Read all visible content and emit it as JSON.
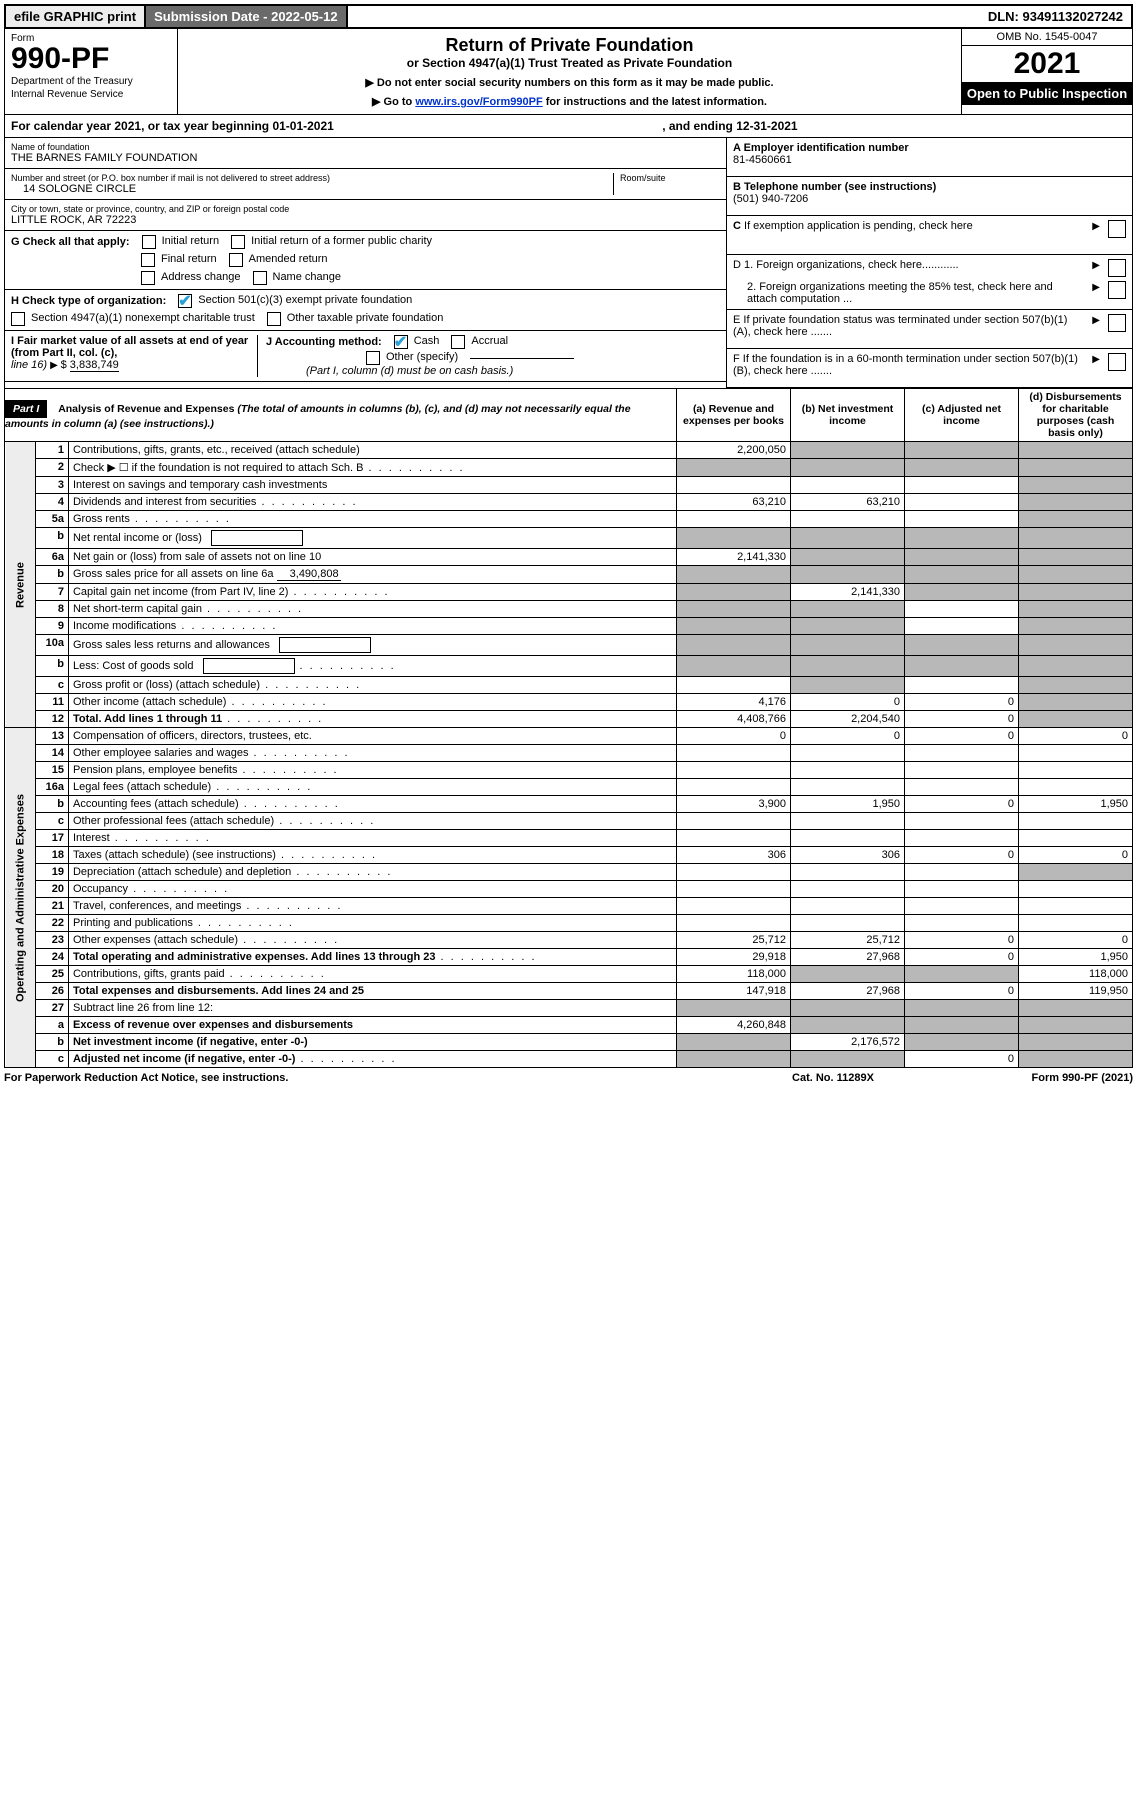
{
  "topbar": {
    "efile": "efile GRAPHIC print",
    "submission": "Submission Date - 2022-05-12",
    "dln": "DLN: 93491132027242"
  },
  "header": {
    "form_word": "Form",
    "form_number": "990-PF",
    "dept1": "Department of the Treasury",
    "dept2": "Internal Revenue Service",
    "title": "Return of Private Foundation",
    "subtitle": "or Section 4947(a)(1) Trust Treated as Private Foundation",
    "note1": "▶ Do not enter social security numbers on this form as it may be made public.",
    "note2_pre": "▶ Go to ",
    "note2_link": "www.irs.gov/Form990PF",
    "note2_post": " for instructions and the latest information.",
    "omb": "OMB No. 1545-0047",
    "year": "2021",
    "open_pub": "Open to Public Inspection"
  },
  "calendar": {
    "label": "For calendar year 2021, or tax year beginning 01-01-2021",
    "ending": ", and ending 12-31-2021"
  },
  "info": {
    "name_label": "Name of foundation",
    "name": "THE BARNES FAMILY FOUNDATION",
    "addr_label": "Number and street (or P.O. box number if mail is not delivered to street address)",
    "addr": "14 SOLOGNE CIRCLE",
    "room_label": "Room/suite",
    "city_label": "City or town, state or province, country, and ZIP or foreign postal code",
    "city": "LITTLE ROCK, AR  72223",
    "a_label": "A Employer identification number",
    "a_val": "81-4560661",
    "b_label": "B Telephone number (see instructions)",
    "b_val": "(501) 940-7206",
    "c_label": "C If exemption application is pending, check here",
    "d1_label": "D 1. Foreign organizations, check here............",
    "d2_label": "2. Foreign organizations meeting the 85% test, check here and attach computation ...",
    "e_label": "E  If private foundation status was terminated under section 507(b)(1)(A), check here .......",
    "f_label": "F  If the foundation is in a 60-month termination under section 507(b)(1)(B), check here .......",
    "g_label": "G Check all that apply:",
    "g_opts": [
      "Initial return",
      "Initial return of a former public charity",
      "Final return",
      "Amended return",
      "Address change",
      "Name change"
    ],
    "h_label": "H Check type of organization:",
    "h_opt1": "Section 501(c)(3) exempt private foundation",
    "h_opt2": "Section 4947(a)(1) nonexempt charitable trust",
    "h_opt3": "Other taxable private foundation",
    "i_label": "I Fair market value of all assets at end of year (from Part II, col. (c),",
    "i_line": "line 16)",
    "i_val": "3,838,749",
    "j_label": "J Accounting method:",
    "j_cash": "Cash",
    "j_accrual": "Accrual",
    "j_other": "Other (specify)",
    "j_note": "(Part I, column (d) must be on cash basis.)"
  },
  "part1": {
    "label": "Part I",
    "title": "Analysis of Revenue and Expenses",
    "title_note": " (The total of amounts in columns (b), (c), and (d) may not necessarily equal the amounts in column (a) (see instructions).)",
    "col_a": "(a)   Revenue and expenses per books",
    "col_b": "(b)   Net investment income",
    "col_c": "(c)   Adjusted net income",
    "col_d": "(d)  Disbursements for charitable purposes (cash basis only)"
  },
  "side_labels": {
    "revenue": "Revenue",
    "expenses": "Operating and Administrative Expenses"
  },
  "rows": [
    {
      "n": "1",
      "desc": "Contributions, gifts, grants, etc., received (attach schedule)",
      "a": "2,200,050",
      "b": "",
      "c": "",
      "d": "",
      "shade_b": true,
      "shade_c": true,
      "shade_d": true
    },
    {
      "n": "2",
      "desc": "Check ▶ ☐ if the foundation is not required to attach Sch. B",
      "dots": true,
      "a": "",
      "b": "",
      "c": "",
      "d": "",
      "shade_a": true,
      "shade_b": true,
      "shade_c": true,
      "shade_d": true
    },
    {
      "n": "3",
      "desc": "Interest on savings and temporary cash investments",
      "a": "",
      "b": "",
      "c": "",
      "d": "",
      "shade_d": true
    },
    {
      "n": "4",
      "desc": "Dividends and interest from securities",
      "dots": true,
      "a": "63,210",
      "b": "63,210",
      "c": "",
      "d": "",
      "shade_d": true
    },
    {
      "n": "5a",
      "desc": "Gross rents",
      "dots": true,
      "a": "",
      "b": "",
      "c": "",
      "d": "",
      "shade_d": true
    },
    {
      "n": "b",
      "desc": "Net rental income or (loss)",
      "box": true,
      "a": "",
      "b": "",
      "c": "",
      "d": "",
      "shade_a": true,
      "shade_b": true,
      "shade_c": true,
      "shade_d": true
    },
    {
      "n": "6a",
      "desc": "Net gain or (loss) from sale of assets not on line 10",
      "a": "2,141,330",
      "b": "",
      "c": "",
      "d": "",
      "shade_b": true,
      "shade_c": true,
      "shade_d": true
    },
    {
      "n": "b",
      "desc": "Gross sales price for all assets on line 6a",
      "inline": "3,490,808",
      "a": "",
      "b": "",
      "c": "",
      "d": "",
      "shade_a": true,
      "shade_b": true,
      "shade_c": true,
      "shade_d": true
    },
    {
      "n": "7",
      "desc": "Capital gain net income (from Part IV, line 2)",
      "dots": true,
      "a": "",
      "b": "2,141,330",
      "c": "",
      "d": "",
      "shade_a": true,
      "shade_c": true,
      "shade_d": true
    },
    {
      "n": "8",
      "desc": "Net short-term capital gain",
      "dots": true,
      "a": "",
      "b": "",
      "c": "",
      "d": "",
      "shade_a": true,
      "shade_b": true,
      "shade_d": true
    },
    {
      "n": "9",
      "desc": "Income modifications",
      "dots": true,
      "a": "",
      "b": "",
      "c": "",
      "d": "",
      "shade_a": true,
      "shade_b": true,
      "shade_d": true
    },
    {
      "n": "10a",
      "desc": "Gross sales less returns and allowances",
      "box": true,
      "a": "",
      "b": "",
      "c": "",
      "d": "",
      "shade_a": true,
      "shade_b": true,
      "shade_c": true,
      "shade_d": true
    },
    {
      "n": "b",
      "desc": "Less: Cost of goods sold",
      "dots": true,
      "box": true,
      "a": "",
      "b": "",
      "c": "",
      "d": "",
      "shade_a": true,
      "shade_b": true,
      "shade_c": true,
      "shade_d": true
    },
    {
      "n": "c",
      "desc": "Gross profit or (loss) (attach schedule)",
      "dots": true,
      "a": "",
      "b": "",
      "c": "",
      "d": "",
      "shade_b": true,
      "shade_d": true
    },
    {
      "n": "11",
      "desc": "Other income (attach schedule)",
      "dots": true,
      "a": "4,176",
      "b": "0",
      "c": "0",
      "d": "",
      "shade_d": true
    },
    {
      "n": "12",
      "desc": "Total. Add lines 1 through 11",
      "dots": true,
      "bold": true,
      "a": "4,408,766",
      "b": "2,204,540",
      "c": "0",
      "d": "",
      "shade_d": true
    },
    {
      "n": "13",
      "desc": "Compensation of officers, directors, trustees, etc.",
      "a": "0",
      "b": "0",
      "c": "0",
      "d": "0"
    },
    {
      "n": "14",
      "desc": "Other employee salaries and wages",
      "dots": true,
      "a": "",
      "b": "",
      "c": "",
      "d": ""
    },
    {
      "n": "15",
      "desc": "Pension plans, employee benefits",
      "dots": true,
      "a": "",
      "b": "",
      "c": "",
      "d": ""
    },
    {
      "n": "16a",
      "desc": "Legal fees (attach schedule)",
      "dots": true,
      "a": "",
      "b": "",
      "c": "",
      "d": ""
    },
    {
      "n": "b",
      "desc": "Accounting fees (attach schedule)",
      "dots": true,
      "a": "3,900",
      "b": "1,950",
      "c": "0",
      "d": "1,950"
    },
    {
      "n": "c",
      "desc": "Other professional fees (attach schedule)",
      "dots": true,
      "a": "",
      "b": "",
      "c": "",
      "d": ""
    },
    {
      "n": "17",
      "desc": "Interest",
      "dots": true,
      "a": "",
      "b": "",
      "c": "",
      "d": ""
    },
    {
      "n": "18",
      "desc": "Taxes (attach schedule) (see instructions)",
      "dots": true,
      "a": "306",
      "b": "306",
      "c": "0",
      "d": "0"
    },
    {
      "n": "19",
      "desc": "Depreciation (attach schedule) and depletion",
      "dots": true,
      "a": "",
      "b": "",
      "c": "",
      "d": "",
      "shade_d": true
    },
    {
      "n": "20",
      "desc": "Occupancy",
      "dots": true,
      "a": "",
      "b": "",
      "c": "",
      "d": ""
    },
    {
      "n": "21",
      "desc": "Travel, conferences, and meetings",
      "dots": true,
      "a": "",
      "b": "",
      "c": "",
      "d": ""
    },
    {
      "n": "22",
      "desc": "Printing and publications",
      "dots": true,
      "a": "",
      "b": "",
      "c": "",
      "d": ""
    },
    {
      "n": "23",
      "desc": "Other expenses (attach schedule)",
      "dots": true,
      "a": "25,712",
      "b": "25,712",
      "c": "0",
      "d": "0"
    },
    {
      "n": "24",
      "desc": "Total operating and administrative expenses. Add lines 13 through 23",
      "dots": true,
      "bold": true,
      "a": "29,918",
      "b": "27,968",
      "c": "0",
      "d": "1,950"
    },
    {
      "n": "25",
      "desc": "Contributions, gifts, grants paid",
      "dots": true,
      "a": "118,000",
      "b": "",
      "c": "",
      "d": "118,000",
      "shade_b": true,
      "shade_c": true
    },
    {
      "n": "26",
      "desc": "Total expenses and disbursements. Add lines 24 and 25",
      "bold": true,
      "a": "147,918",
      "b": "27,968",
      "c": "0",
      "d": "119,950"
    },
    {
      "n": "27",
      "desc": "Subtract line 26 from line 12:",
      "a": "",
      "b": "",
      "c": "",
      "d": "",
      "shade_a": true,
      "shade_b": true,
      "shade_c": true,
      "shade_d": true
    },
    {
      "n": "a",
      "desc": "Excess of revenue over expenses and disbursements",
      "bold": true,
      "a": "4,260,848",
      "b": "",
      "c": "",
      "d": "",
      "shade_b": true,
      "shade_c": true,
      "shade_d": true
    },
    {
      "n": "b",
      "desc": "Net investment income (if negative, enter -0-)",
      "bold": true,
      "a": "",
      "b": "2,176,572",
      "c": "",
      "d": "",
      "shade_a": true,
      "shade_c": true,
      "shade_d": true
    },
    {
      "n": "c",
      "desc": "Adjusted net income (if negative, enter -0-)",
      "dots": true,
      "bold": true,
      "a": "",
      "b": "",
      "c": "0",
      "d": "",
      "shade_a": true,
      "shade_b": true,
      "shade_d": true
    }
  ],
  "footer": {
    "left": "For Paperwork Reduction Act Notice, see instructions.",
    "center": "Cat. No. 11289X",
    "right": "Form 990-PF (2021)"
  }
}
